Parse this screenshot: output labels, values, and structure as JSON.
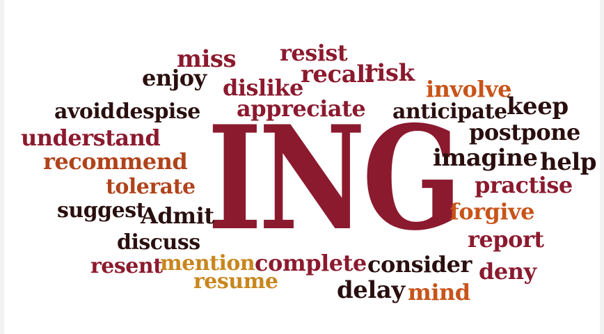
{
  "colors": {
    "maroon": "#8b1a2e",
    "dark": "#2a0f0f",
    "orange": "#c8541a",
    "gold": "#c8861e",
    "rust": "#b0431b"
  },
  "center_word": "ING",
  "words": {
    "miss": "miss",
    "resist": "resist",
    "enjoy": "enjoy",
    "dislike": "dislike",
    "recall": "recall",
    "risk": "risk",
    "involve": "involve",
    "avoid": "avoid",
    "despise": "despise",
    "appreciate": "appreciate",
    "anticipate": "anticipate",
    "keep": "keep",
    "understand": "understand",
    "postpone": "postpone",
    "recommend": "recommend",
    "imagine": "imagine",
    "help": "help",
    "tolerate": "tolerate",
    "practise": "practise",
    "suggest": "suggest",
    "admit": "Admit",
    "forgive": "forgive",
    "report": "report",
    "discuss": "discuss",
    "resent": "resent",
    "mention": "mention",
    "complete": "complete",
    "consider": "consider",
    "deny": "deny",
    "resume": "resume",
    "delay": "delay",
    "mind": "mind"
  }
}
